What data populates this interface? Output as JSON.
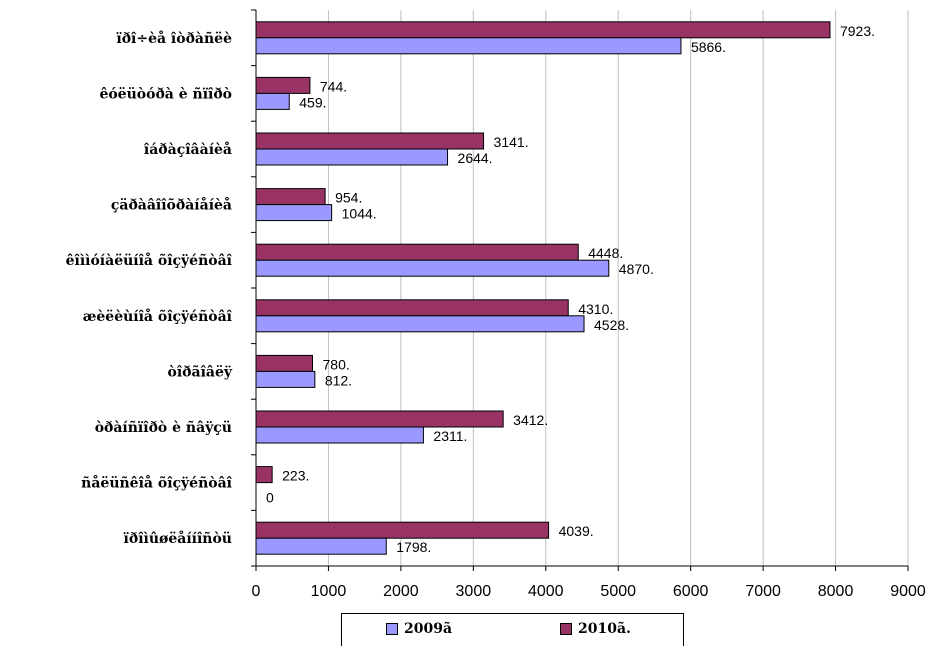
{
  "chart_data": {
    "type": "bar",
    "orientation": "horizontal",
    "categories": [
      "ïðî÷èå îòðàñëè",
      "êóëüòóðà è ñïîðò",
      "îáðàçîâàíèå",
      "çäðàâîîõðàíåíèå",
      "êîììóíàëüíîå õîçÿéñòâî",
      "æèëèùíîå õîçÿéñòâî",
      "òîðãîâëÿ",
      "òðàíñïîðò è ñâÿçü",
      "ñåëüñêîå õîçÿéñòâî",
      "ïðîìûøëåííîñòü"
    ],
    "series": [
      {
        "name": "2009ã",
        "color": "#9999ff",
        "values": [
          5866,
          459,
          2644,
          1044,
          4870,
          4528,
          812,
          2311,
          0,
          1798
        ],
        "labels": [
          "5866.",
          "459.",
          "2644.",
          "1044.",
          "4870.",
          "4528.",
          "812.",
          "2311.",
          "0",
          "1798."
        ]
      },
      {
        "name": "2010ã.",
        "color": "#993366",
        "values": [
          7923,
          744,
          3141,
          954,
          4448,
          4310,
          780,
          3412,
          223,
          4039
        ],
        "labels": [
          "7923.",
          "744.",
          "3141.",
          "954.",
          "4448.",
          "4310.",
          "780.",
          "3412.",
          "223.",
          "4039."
        ]
      }
    ],
    "xlim": [
      0,
      9000
    ],
    "xticks": [
      "0",
      "1000",
      "2000",
      "3000",
      "4000",
      "5000",
      "6000",
      "7000",
      "8000",
      "9000"
    ],
    "grid": "vertical",
    "legend_position": "bottom",
    "title": "",
    "xlabel": "",
    "ylabel": ""
  },
  "legend": {
    "series_2009": "2009ã",
    "series_2010": "2010ã."
  }
}
